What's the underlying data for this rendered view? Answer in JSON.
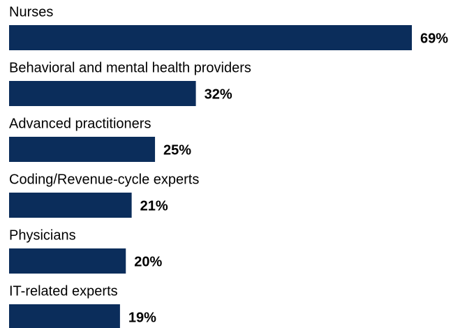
{
  "chart_data": {
    "type": "bar",
    "orientation": "horizontal",
    "categories": [
      "Nurses",
      "Behavioral and mental health providers",
      "Advanced practitioners",
      "Coding/Revenue-cycle experts",
      "Physicians",
      "IT-related experts"
    ],
    "values": [
      69,
      32,
      25,
      21,
      20,
      19
    ],
    "value_labels": [
      "69%",
      "32%",
      "25%",
      "21%",
      "20%",
      "19%"
    ],
    "color": "#0b2d5b"
  }
}
